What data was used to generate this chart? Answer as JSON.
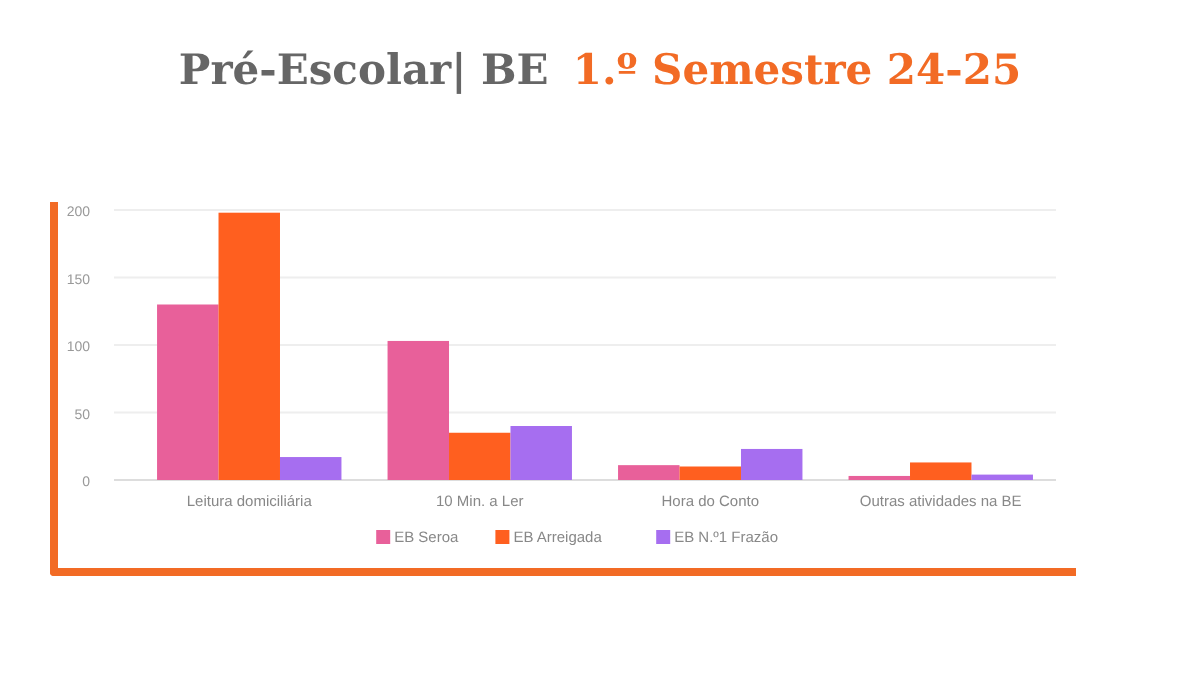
{
  "chart_data": {
    "type": "bar",
    "title": "Pré-Escolar| BE",
    "subtitle": "1.º Semestre 24-25",
    "categories": [
      "Leitura domiciliária",
      "10 Min. a Ler",
      "Hora do Conto",
      "Outras atividades na BE"
    ],
    "series": [
      {
        "name": "EB Seroa",
        "color": "#e8609a",
        "values": [
          130,
          103,
          11,
          3
        ]
      },
      {
        "name": "EB Arreigada",
        "color": "#ff5f1f",
        "values": [
          198,
          35,
          10,
          13
        ]
      },
      {
        "name": "EB N.º1 Frazão",
        "color": "#a66ef0",
        "values": [
          17,
          40,
          23,
          4
        ]
      }
    ],
    "ylim": [
      0,
      200
    ],
    "yticks": [
      0,
      50,
      100,
      150,
      200
    ],
    "grid": "y",
    "legend": "bottom"
  }
}
